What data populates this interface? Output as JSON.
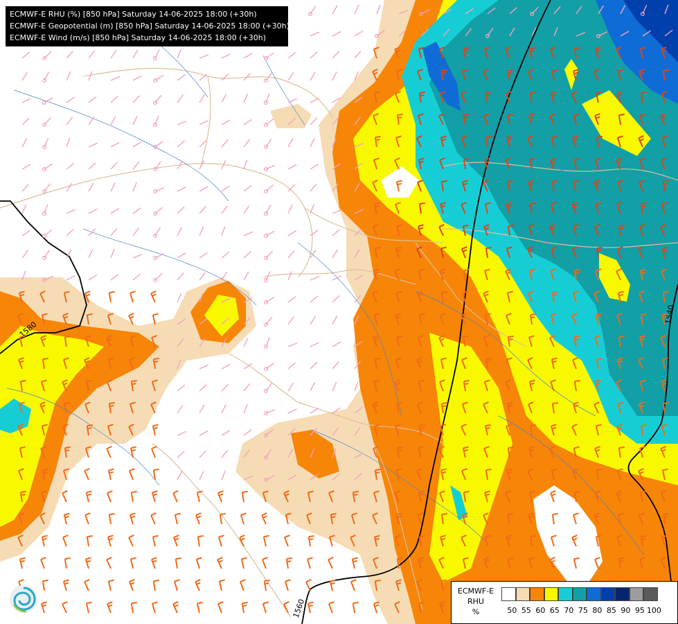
{
  "header": {
    "lines": [
      "ECMWF-E RHU (%) [850 hPa] Saturday 14-06-2025 18:00 (+30h)",
      "ECMWF-E Geopotential (m) [850 hPa] Saturday 14-06-2025 18:00 (+30h)",
      "ECMWF-E Wind (m/s) [850 hPa] Saturday 14-06-2025 18:00 (+30h)"
    ]
  },
  "legend": {
    "title_line1": "ECMWF-E",
    "title_line2": "RHU",
    "title_line3": "%",
    "colors": [
      "#ffffff",
      "#f6dcb4",
      "#f78508",
      "#f8f900",
      "#17cdd5",
      "#129fa6",
      "#0f6cd6",
      "#0040ad",
      "#05256e",
      "#9c9c9c",
      "#5b5b5b"
    ],
    "ticks": [
      "50",
      "55",
      "60",
      "65",
      "70",
      "75",
      "80",
      "85",
      "90",
      "95",
      "100"
    ]
  },
  "contours": {
    "labels": [
      "1580",
      "1540",
      "1560"
    ]
  },
  "logo": {
    "icon": "ecmwf-swirl-logo-icon"
  }
}
